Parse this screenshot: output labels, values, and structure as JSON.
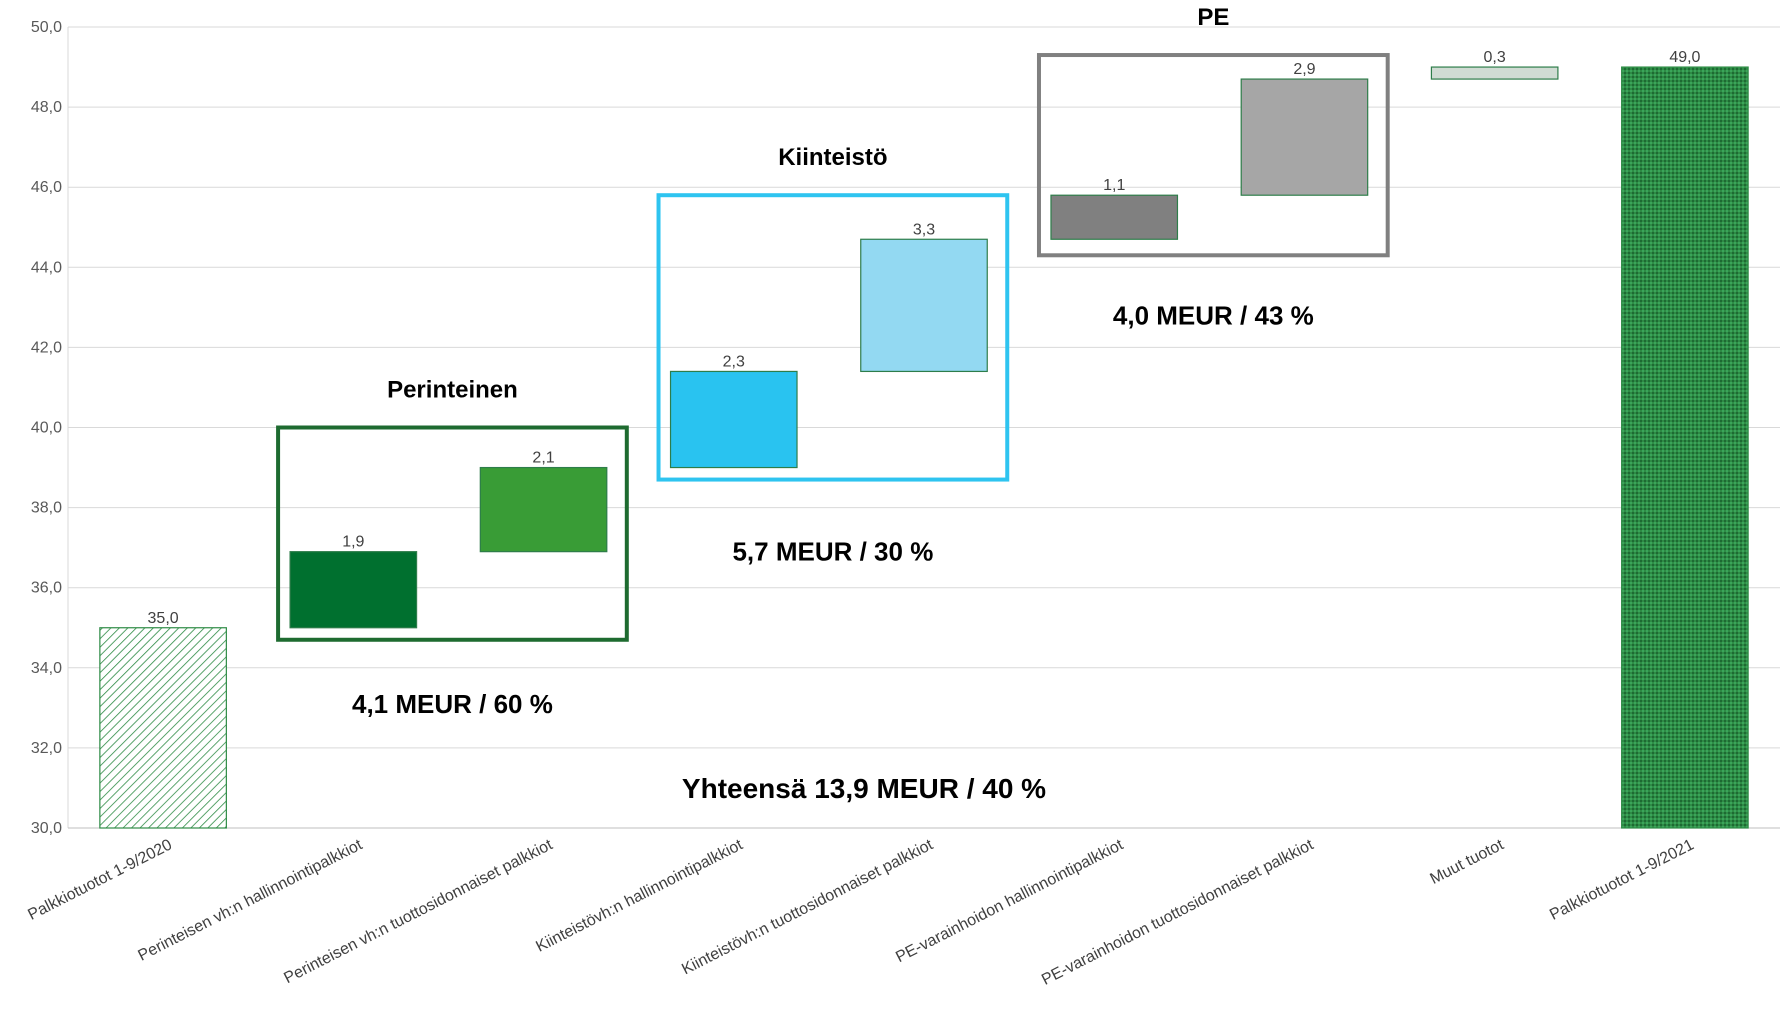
{
  "chart_data": {
    "type": "bar",
    "variant": "waterfall",
    "y_axis": {
      "min": 30,
      "max": 50,
      "step": 2,
      "tick_labels": [
        "30,0",
        "32,0",
        "34,0",
        "36,0",
        "38,0",
        "40,0",
        "42,0",
        "44,0",
        "46,0",
        "48,0",
        "50,0"
      ]
    },
    "grid": true,
    "categories": [
      "Palkkiotuotot 1-9/2020",
      "Perinteisen vh:n hallinnointipalkkiot",
      "Perinteisen vh:n tuottosidonnaiset palkkiot",
      "Kiinteistövh:n hallinnointipalkkiot",
      "Kiinteistövh:n tuottosidonnaiset palkkiot",
      "PE-varainhoidon hallinnointipalkkiot",
      "PE-varainhoidon tuottosidonnaiset palkkiot",
      "Muut tuotot",
      "Palkkiotuotot 1-9/2021"
    ],
    "bars": [
      {
        "kind": "total",
        "start": 30,
        "end": 35.0,
        "label": "35,0",
        "fill": "hatch-light",
        "color": "#2e8b45"
      },
      {
        "kind": "delta",
        "start": 35.0,
        "end": 36.9,
        "label": "1,9",
        "color": "#00702f"
      },
      {
        "kind": "delta",
        "start": 36.9,
        "end": 39.0,
        "label": "2,1",
        "color": "#399c36"
      },
      {
        "kind": "delta",
        "start": 39.0,
        "end": 41.4,
        "label": "2,3",
        "color": "#29c3f0"
      },
      {
        "kind": "delta",
        "start": 41.4,
        "end": 44.7,
        "label": "3,3",
        "color": "#93d9f2"
      },
      {
        "kind": "delta",
        "start": 44.7,
        "end": 45.8,
        "label": "1,1",
        "color": "#808080"
      },
      {
        "kind": "delta",
        "start": 45.8,
        "end": 48.7,
        "label": "2,9",
        "color": "#a6a6a6"
      },
      {
        "kind": "delta",
        "start": 48.7,
        "end": 49.0,
        "label": "0,3",
        "color": "#d0dbd3"
      },
      {
        "kind": "total",
        "start": 30,
        "end": 49.0,
        "label": "49,0",
        "fill": "hatch-dense",
        "color": "#2e8b45"
      }
    ],
    "groups": [
      {
        "title": "Perinteinen",
        "annotation": "4,1 MEUR / 60 %",
        "from": 1,
        "to": 2,
        "border": "#1e6b30",
        "box_bottom": 34.7,
        "box_top": 40.0,
        "annot_y": 33.1
      },
      {
        "title": "Kiinteistö",
        "annotation": "5,7 MEUR / 30 %",
        "from": 3,
        "to": 4,
        "border": "#2ec4f0",
        "box_bottom": 38.7,
        "box_top": 45.8,
        "annot_y": 36.9
      },
      {
        "title": "PE",
        "annotation": "4,0 MEUR / 43 %",
        "from": 5,
        "to": 6,
        "border": "#808080",
        "box_bottom": 44.3,
        "box_top": 49.3,
        "annot_y": 42.8
      }
    ],
    "total_annotation": "Yhteensä 13,9 MEUR / 40 %"
  }
}
